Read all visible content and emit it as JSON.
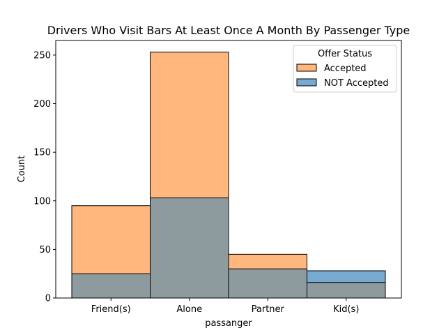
{
  "chart_data": {
    "type": "bar",
    "title": "Drivers Who Visit Bars At Least Once A Month By Passenger Type",
    "xlabel": "passanger",
    "ylabel": "Count",
    "categories": [
      "Friend(s)",
      "Alone",
      "Partner",
      "Kid(s)"
    ],
    "series": [
      {
        "name": "Accepted",
        "values": [
          95,
          253,
          45,
          16
        ],
        "color": "#ffb77d"
      },
      {
        "name": "NOT Accepted",
        "values": [
          25,
          103,
          30,
          28
        ],
        "color": "#77a9d1"
      }
    ],
    "overlap_color": "#8d9b9f",
    "ylim": [
      0,
      265
    ],
    "yticks": [
      0,
      50,
      100,
      150,
      200,
      250
    ],
    "grid": false,
    "legend": {
      "title": "Offer Status",
      "position": "top-right"
    }
  }
}
